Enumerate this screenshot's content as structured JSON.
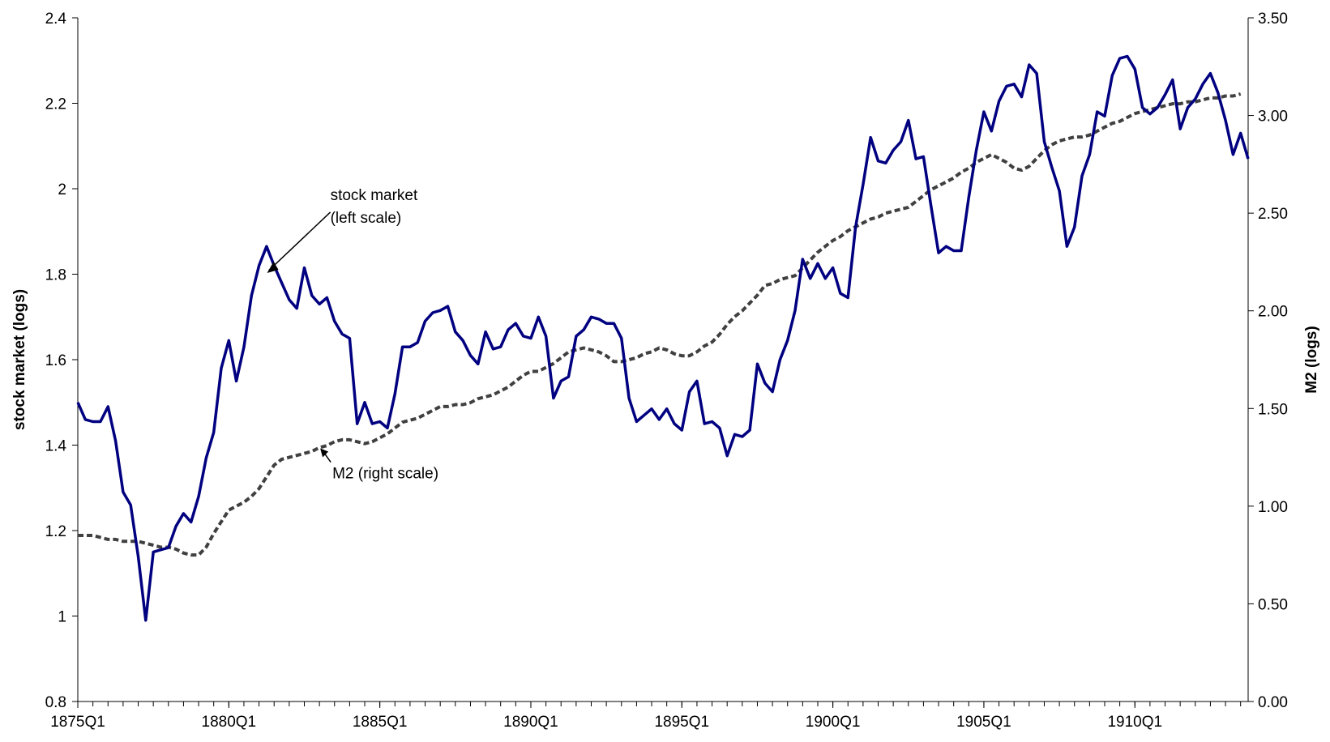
{
  "chart_data": {
    "type": "line",
    "ylabel_left": "stock market (logs)",
    "ylabel_right": "M2 (logs)",
    "ylim_left": [
      0.8,
      2.4
    ],
    "ylim_right": [
      0.0,
      3.5
    ],
    "yticks_left": [
      "0.8",
      "1",
      "1.2",
      "1.4",
      "1.6",
      "1.8",
      "2",
      "2.2",
      "2.4"
    ],
    "yticks_right": [
      "0.00",
      "0.50",
      "1.00",
      "1.50",
      "2.00",
      "2.50",
      "3.00",
      "3.50"
    ],
    "xticks": [
      "1875Q1",
      "1880Q1",
      "1885Q1",
      "1890Q1",
      "1895Q1",
      "1900Q1",
      "1905Q1",
      "1910Q1"
    ],
    "x_start": "1875Q1",
    "x_end": "1914Q3",
    "grid": false,
    "annotations": [
      {
        "text_lines": [
          "stock market",
          "(left scale)"
        ],
        "points_to": "stock market",
        "at": "1881Q1"
      },
      {
        "text_lines": [
          "M2 (right scale)"
        ],
        "points_to": "M2",
        "at": "1883Q1"
      }
    ],
    "series": [
      {
        "name": "stock market",
        "axis": "left",
        "color": "#000080",
        "style": "solid",
        "values": [
          1.5,
          1.46,
          1.455,
          1.455,
          1.49,
          1.41,
          1.29,
          1.26,
          1.14,
          0.99,
          1.15,
          1.155,
          1.16,
          1.21,
          1.24,
          1.22,
          1.28,
          1.37,
          1.43,
          1.58,
          1.645,
          1.55,
          1.63,
          1.75,
          1.82,
          1.865,
          1.82,
          1.78,
          1.74,
          1.72,
          1.815,
          1.75,
          1.73,
          1.745,
          1.69,
          1.66,
          1.65,
          1.45,
          1.5,
          1.45,
          1.455,
          1.44,
          1.52,
          1.63,
          1.63,
          1.64,
          1.69,
          1.71,
          1.715,
          1.725,
          1.665,
          1.645,
          1.61,
          1.59,
          1.665,
          1.625,
          1.63,
          1.67,
          1.685,
          1.655,
          1.65,
          1.7,
          1.655,
          1.51,
          1.55,
          1.56,
          1.655,
          1.67,
          1.7,
          1.695,
          1.685,
          1.685,
          1.65,
          1.51,
          1.455,
          1.47,
          1.485,
          1.46,
          1.485,
          1.45,
          1.435,
          1.525,
          1.55,
          1.45,
          1.455,
          1.44,
          1.375,
          1.425,
          1.42,
          1.435,
          1.59,
          1.545,
          1.525,
          1.6,
          1.645,
          1.715,
          1.835,
          1.79,
          1.825,
          1.79,
          1.815,
          1.755,
          1.745,
          1.91,
          2.01,
          2.12,
          2.065,
          2.06,
          2.09,
          2.11,
          2.16,
          2.07,
          2.075,
          1.96,
          1.85,
          1.865,
          1.855,
          1.855,
          1.98,
          2.09,
          2.18,
          2.135,
          2.205,
          2.24,
          2.245,
          2.215,
          2.29,
          2.27,
          2.11,
          2.05,
          1.995,
          1.865,
          1.91,
          2.03,
          2.08,
          2.18,
          2.17,
          2.265,
          2.305,
          2.31,
          2.28,
          2.19,
          2.175,
          2.19,
          2.22,
          2.255,
          2.14,
          2.19,
          2.21,
          2.245,
          2.27,
          2.225,
          2.16,
          2.08,
          2.13,
          2.07
        ]
      },
      {
        "name": "M2",
        "axis": "right",
        "color": "#404040",
        "style": "dashed",
        "values": [
          0.85,
          0.85,
          0.85,
          0.84,
          0.83,
          0.83,
          0.82,
          0.82,
          0.82,
          0.81,
          0.8,
          0.79,
          0.79,
          0.78,
          0.76,
          0.75,
          0.75,
          0.79,
          0.86,
          0.92,
          0.98,
          1.0,
          1.02,
          1.05,
          1.09,
          1.15,
          1.21,
          1.24,
          1.25,
          1.26,
          1.27,
          1.28,
          1.3,
          1.31,
          1.33,
          1.34,
          1.34,
          1.33,
          1.32,
          1.33,
          1.35,
          1.37,
          1.4,
          1.43,
          1.44,
          1.45,
          1.47,
          1.49,
          1.51,
          1.51,
          1.52,
          1.52,
          1.53,
          1.55,
          1.56,
          1.57,
          1.59,
          1.61,
          1.64,
          1.67,
          1.69,
          1.69,
          1.71,
          1.73,
          1.76,
          1.79,
          1.8,
          1.81,
          1.8,
          1.79,
          1.77,
          1.74,
          1.74,
          1.75,
          1.76,
          1.78,
          1.79,
          1.81,
          1.8,
          1.78,
          1.77,
          1.77,
          1.79,
          1.82,
          1.84,
          1.88,
          1.93,
          1.97,
          2.0,
          2.04,
          2.08,
          2.13,
          2.14,
          2.16,
          2.17,
          2.18,
          2.22,
          2.26,
          2.3,
          2.33,
          2.36,
          2.38,
          2.41,
          2.43,
          2.45,
          2.47,
          2.48,
          2.5,
          2.51,
          2.52,
          2.53,
          2.56,
          2.59,
          2.62,
          2.64,
          2.66,
          2.68,
          2.71,
          2.73,
          2.76,
          2.78,
          2.8,
          2.78,
          2.76,
          2.73,
          2.72,
          2.74,
          2.78,
          2.82,
          2.85,
          2.87,
          2.88,
          2.89,
          2.89,
          2.9,
          2.92,
          2.94,
          2.96,
          2.97,
          2.99,
          3.01,
          3.02,
          3.03,
          3.04,
          3.05,
          3.06,
          3.06,
          3.07,
          3.07,
          3.08,
          3.09,
          3.09,
          3.1,
          3.1,
          3.11
        ]
      }
    ]
  }
}
